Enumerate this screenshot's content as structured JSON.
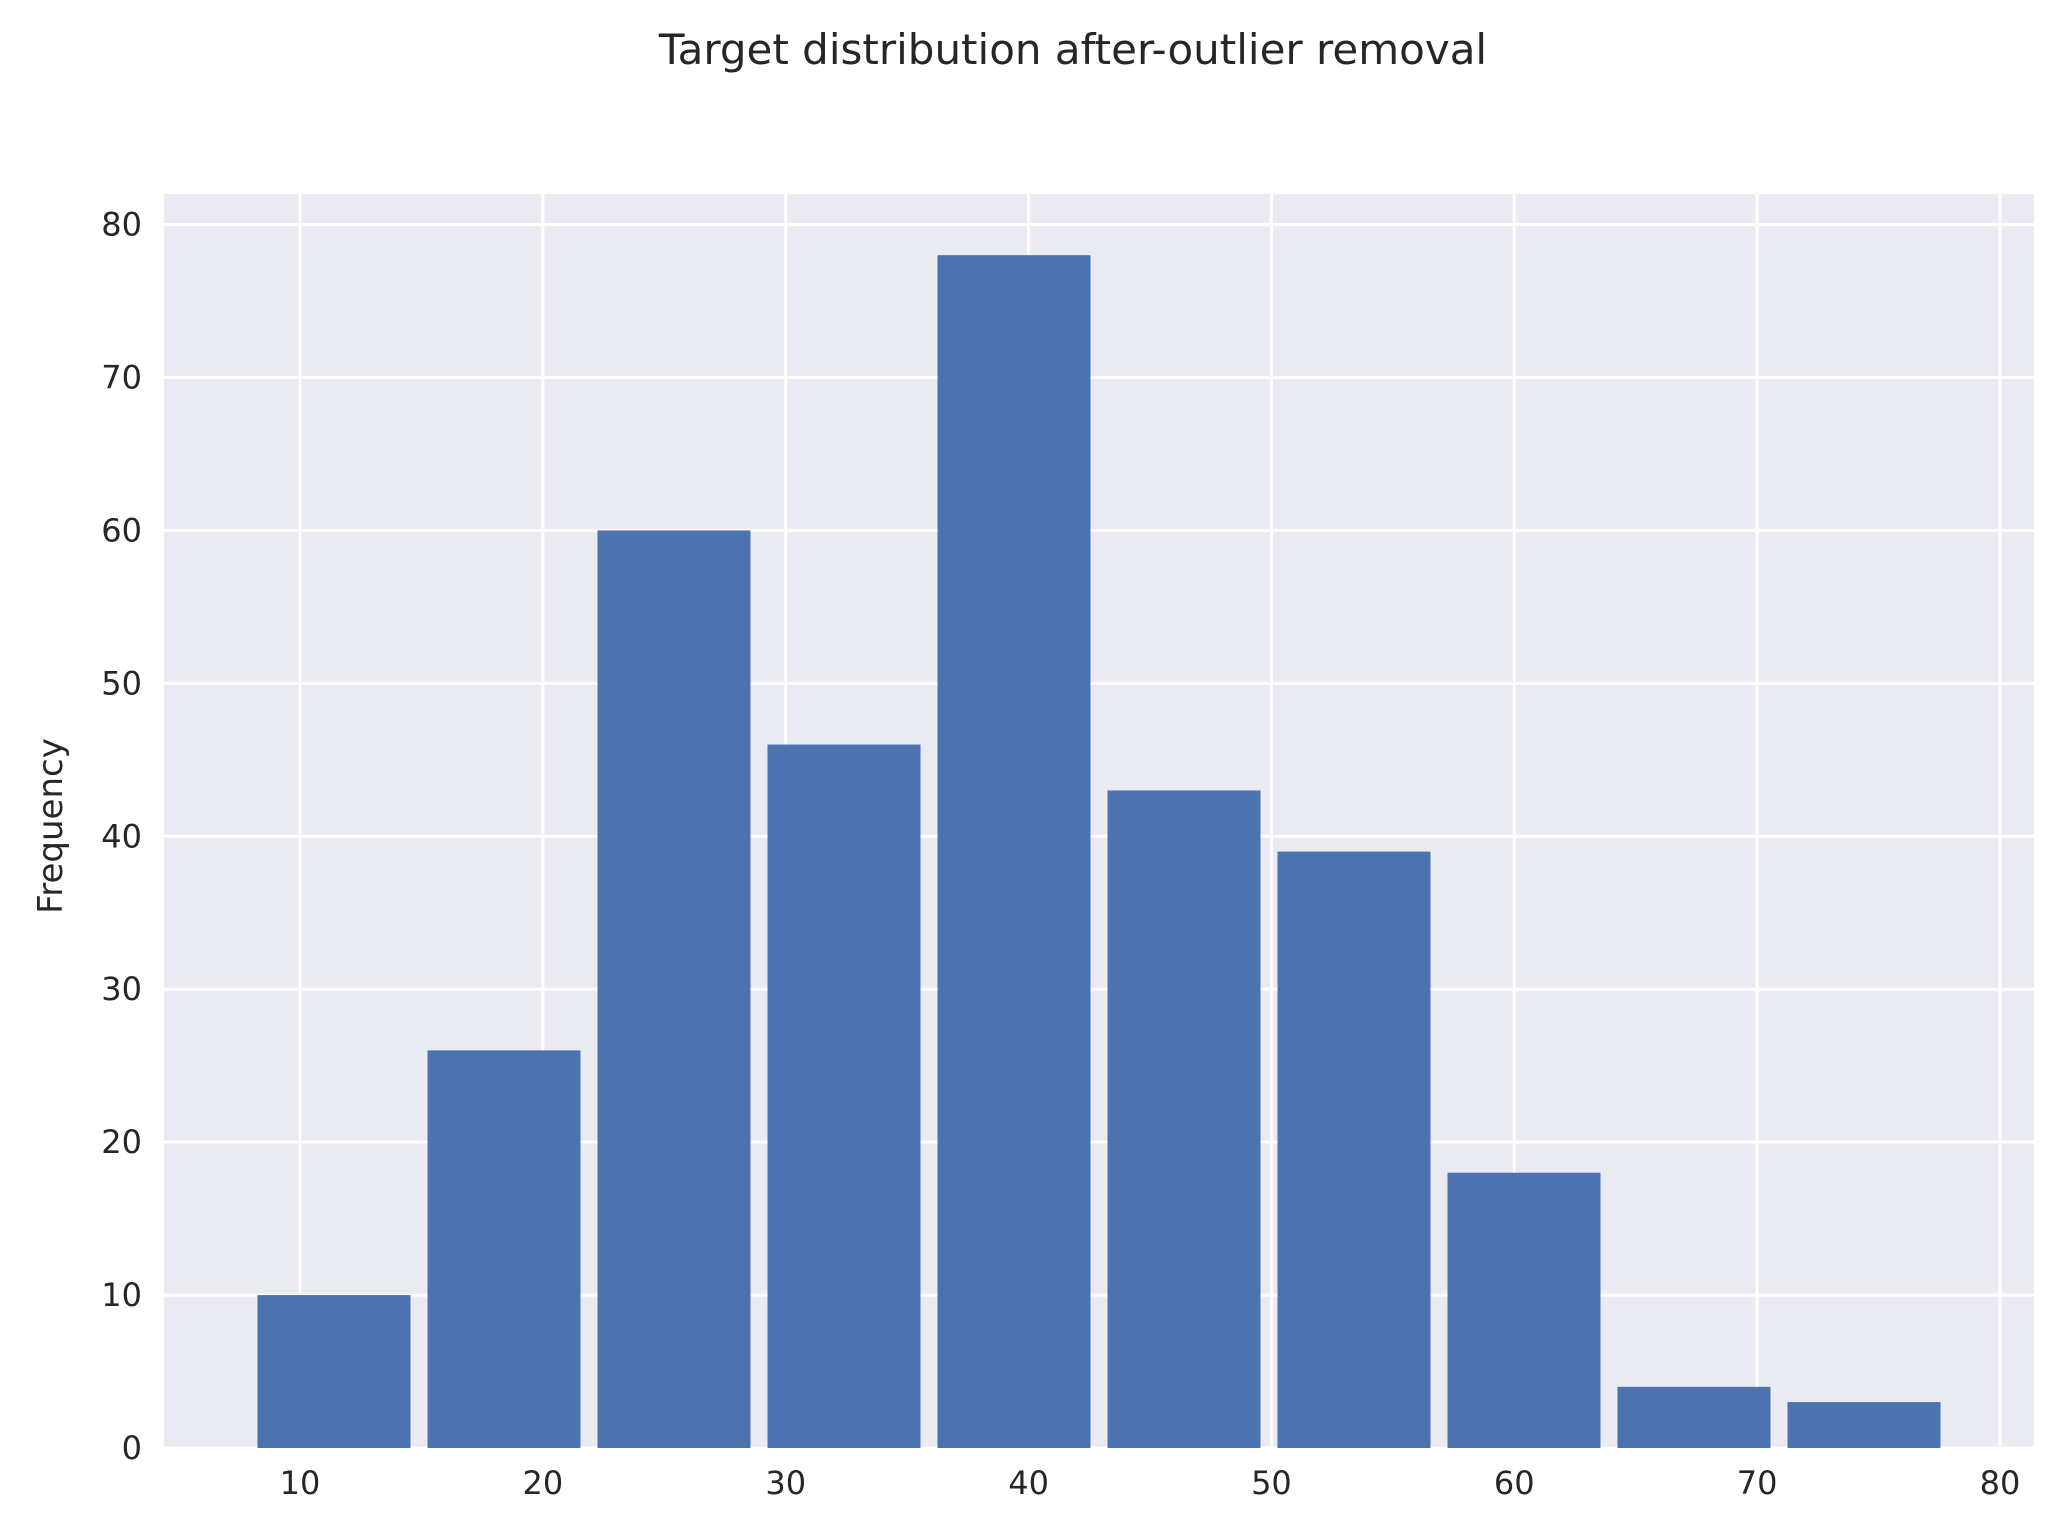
{
  "chart_data": {
    "type": "bar",
    "title": "Target distribution after-outlier removal",
    "xlabel": "",
    "ylabel": "Frequency",
    "bins": [
      {
        "start": 7.9,
        "end": 14.9,
        "count": 10
      },
      {
        "start": 14.9,
        "end": 21.9,
        "count": 26
      },
      {
        "start": 21.9,
        "end": 28.9,
        "count": 60
      },
      {
        "start": 28.9,
        "end": 35.9,
        "count": 46
      },
      {
        "start": 35.9,
        "end": 42.9,
        "count": 78
      },
      {
        "start": 42.9,
        "end": 49.9,
        "count": 43
      },
      {
        "start": 49.9,
        "end": 56.9,
        "count": 39
      },
      {
        "start": 56.9,
        "end": 63.9,
        "count": 18
      },
      {
        "start": 63.9,
        "end": 70.9,
        "count": 4
      },
      {
        "start": 70.9,
        "end": 77.9,
        "count": 3
      }
    ],
    "rwidth": 0.9,
    "xlim": [
      4.4,
      81.4
    ],
    "ylim": [
      0,
      82
    ],
    "xticks": [
      10,
      20,
      30,
      40,
      50,
      60,
      70,
      80
    ],
    "yticks": [
      0,
      10,
      20,
      30,
      40,
      50,
      60,
      70,
      80
    ],
    "grid": true,
    "colors": {
      "bar": "#4c72b0",
      "background": "#eaeaf2",
      "grid": "#ffffff"
    }
  }
}
